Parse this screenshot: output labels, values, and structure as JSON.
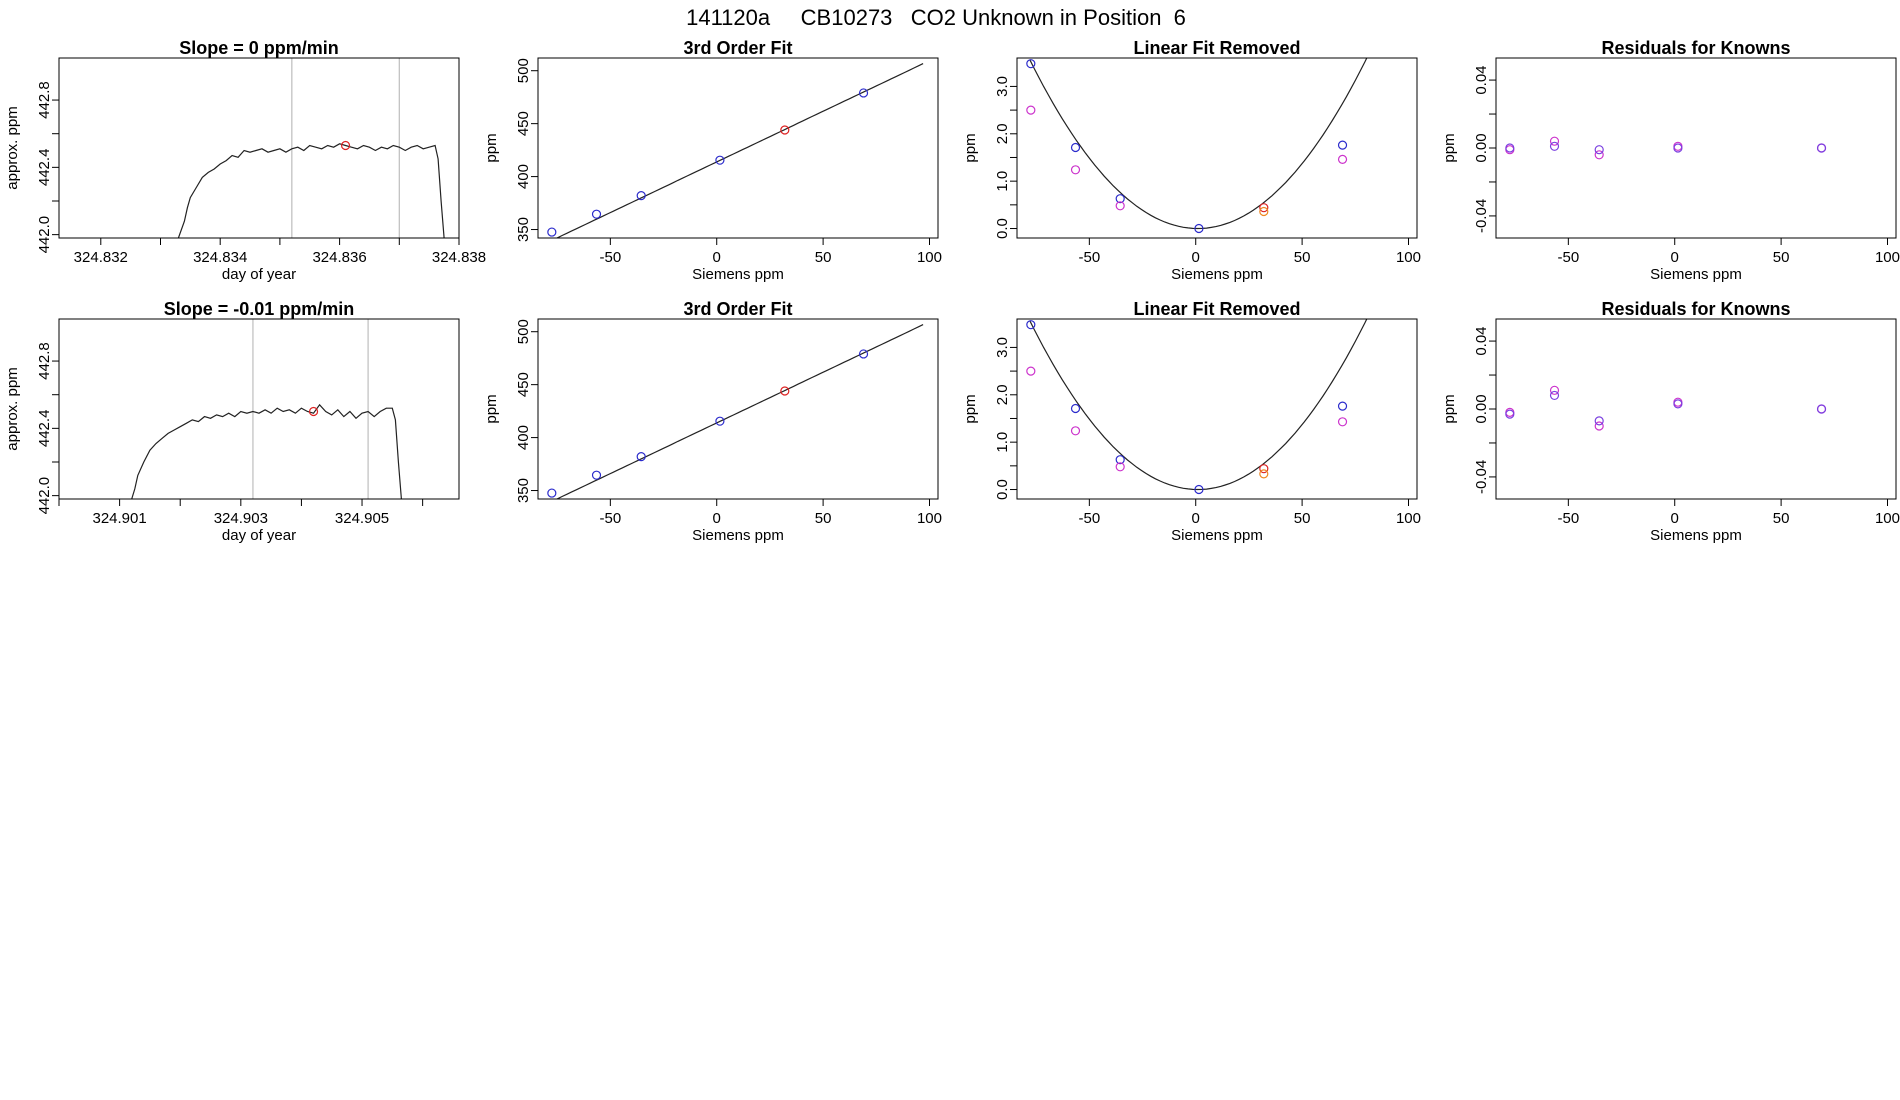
{
  "figure": {
    "title": "141120a     CB10273   CO2 Unknown in Position  6"
  },
  "colors": {
    "axes": "#000000",
    "trace": "#222222",
    "window_lines": "#bdbdbd",
    "blue": "#2b2bcc",
    "magenta": "#cc33cc",
    "red": "#dd2222",
    "orange": "#ee8822",
    "purple": "#7a3fe0"
  },
  "chart_data": [
    {
      "type": "line",
      "row": 1,
      "col": 1,
      "title": "Slope =  0  ppm/min",
      "xlabel": "day of year",
      "ylabel": "approx. ppm",
      "xlim": [
        324.8313,
        324.838
      ],
      "ylim": [
        441.98,
        443.05
      ],
      "xticks": [
        324.832,
        324.833,
        324.834,
        324.835,
        324.836,
        324.837,
        324.838
      ],
      "xtick_labels": [
        "324.832",
        "",
        "324.834",
        "",
        "324.836",
        "",
        "324.838"
      ],
      "yticks": [
        442.0,
        442.2,
        442.4,
        442.6,
        442.8
      ],
      "ytick_labels": [
        "442.0",
        "",
        "442.4",
        "",
        "442.8"
      ],
      "window": [
        324.8352,
        324.837
      ],
      "marker": {
        "x": 324.8361,
        "y": 442.53,
        "color": "red"
      },
      "trace": [
        [
          324.8333,
          441.98
        ],
        [
          324.8334,
          442.08
        ],
        [
          324.83345,
          442.16
        ],
        [
          324.8335,
          442.22
        ],
        [
          324.8336,
          442.28
        ],
        [
          324.8337,
          442.34
        ],
        [
          324.8338,
          442.37
        ],
        [
          324.8339,
          442.39
        ],
        [
          324.834,
          442.42
        ],
        [
          324.8341,
          442.44
        ],
        [
          324.8342,
          442.47
        ],
        [
          324.8343,
          442.46
        ],
        [
          324.8344,
          442.5
        ],
        [
          324.8345,
          442.49
        ],
        [
          324.8346,
          442.5
        ],
        [
          324.8347,
          442.51
        ],
        [
          324.8348,
          442.49
        ],
        [
          324.8349,
          442.5
        ],
        [
          324.835,
          442.51
        ],
        [
          324.8351,
          442.49
        ],
        [
          324.8352,
          442.51
        ],
        [
          324.8353,
          442.52
        ],
        [
          324.8354,
          442.5
        ],
        [
          324.8355,
          442.53
        ],
        [
          324.8356,
          442.52
        ],
        [
          324.8357,
          442.51
        ],
        [
          324.8358,
          442.53
        ],
        [
          324.8359,
          442.52
        ],
        [
          324.836,
          442.54
        ],
        [
          324.8361,
          442.53
        ],
        [
          324.8362,
          442.52
        ],
        [
          324.8363,
          442.51
        ],
        [
          324.8364,
          442.53
        ],
        [
          324.8365,
          442.52
        ],
        [
          324.8366,
          442.5
        ],
        [
          324.8367,
          442.52
        ],
        [
          324.8368,
          442.51
        ],
        [
          324.8369,
          442.53
        ],
        [
          324.837,
          442.52
        ],
        [
          324.8371,
          442.5
        ],
        [
          324.8372,
          442.52
        ],
        [
          324.8373,
          442.53
        ],
        [
          324.8374,
          442.51
        ],
        [
          324.8375,
          442.52
        ],
        [
          324.8376,
          442.53
        ],
        [
          324.83765,
          442.45
        ],
        [
          324.8377,
          442.2
        ],
        [
          324.83775,
          441.98
        ]
      ]
    },
    {
      "type": "scatter",
      "row": 1,
      "col": 2,
      "title": "3rd Order Fit",
      "xlabel": "Siemens ppm",
      "ylabel": "ppm",
      "xlim": [
        -84,
        104
      ],
      "ylim": [
        342,
        512
      ],
      "xticks": [
        -50,
        0,
        50,
        100
      ],
      "xtick_labels": [
        "-50",
        "0",
        "50",
        "100"
      ],
      "yticks": [
        350,
        400,
        450,
        500
      ],
      "ytick_labels": [
        "350",
        "400",
        "450",
        "500"
      ],
      "curve": {
        "kind": "linear_fit",
        "x_start": -77.0,
        "x_end": 97.0,
        "x_anchor": 1.0,
        "y_anchor": 414.8,
        "slope": 0.957,
        "quad": 0.0
      },
      "points": [
        {
          "x": -77.5,
          "y": 347.6,
          "color": "blue"
        },
        {
          "x": -56.5,
          "y": 364.5,
          "color": "blue"
        },
        {
          "x": -35.5,
          "y": 382.0,
          "color": "blue"
        },
        {
          "x": 1.5,
          "y": 415.5,
          "color": "blue"
        },
        {
          "x": 32.0,
          "y": 444.0,
          "color": "red"
        },
        {
          "x": 69.0,
          "y": 479.0,
          "color": "blue"
        }
      ]
    },
    {
      "type": "scatter",
      "row": 1,
      "col": 3,
      "title": "Linear Fit Removed",
      "xlabel": "Siemens ppm",
      "ylabel": "ppm",
      "xlim": [
        -84,
        104
      ],
      "ylim": [
        -0.2,
        3.6
      ],
      "xticks": [
        -50,
        0,
        50,
        100
      ],
      "xtick_labels": [
        "-50",
        "0",
        "50",
        "100"
      ],
      "yticks": [
        0.0,
        0.5,
        1.0,
        1.5,
        2.0,
        2.5,
        3.0
      ],
      "ytick_labels": [
        "0.0",
        "",
        "1.0",
        "",
        "2.0",
        "",
        "3.0"
      ],
      "curve": {
        "kind": "quadratic",
        "x_start": -78.0,
        "x_end": 97.0,
        "x_anchor": 1.0,
        "y_anchor": 0.0,
        "slope": 0.0,
        "quad": 0.000571
      },
      "points": [
        {
          "x": -77.5,
          "y": 3.48,
          "color": "blue"
        },
        {
          "x": -77.5,
          "y": 2.5,
          "color": "magenta"
        },
        {
          "x": -56.5,
          "y": 1.71,
          "color": "blue"
        },
        {
          "x": -56.5,
          "y": 1.24,
          "color": "magenta"
        },
        {
          "x": -35.5,
          "y": 0.63,
          "color": "blue"
        },
        {
          "x": -35.5,
          "y": 0.48,
          "color": "magenta"
        },
        {
          "x": 1.5,
          "y": 0.0,
          "color": "blue"
        },
        {
          "x": 32.0,
          "y": 0.44,
          "color": "red"
        },
        {
          "x": 32.0,
          "y": 0.36,
          "color": "orange"
        },
        {
          "x": 69.0,
          "y": 1.76,
          "color": "blue"
        },
        {
          "x": 69.0,
          "y": 1.46,
          "color": "magenta"
        }
      ]
    },
    {
      "type": "scatter",
      "row": 1,
      "col": 4,
      "title": "Residuals for Knowns",
      "xlabel": "Siemens ppm",
      "ylabel": "ppm",
      "xlim": [
        -84,
        104
      ],
      "ylim": [
        -0.053,
        0.053
      ],
      "xticks": [
        -50,
        0,
        50,
        100
      ],
      "xtick_labels": [
        "-50",
        "0",
        "50",
        "100"
      ],
      "yticks": [
        -0.04,
        -0.02,
        0.0,
        0.02,
        0.04
      ],
      "ytick_labels": [
        "-0.04",
        "",
        "0.00",
        "",
        "0.04"
      ],
      "points": [
        {
          "x": -77.5,
          "y": -0.001,
          "color": "magenta"
        },
        {
          "x": -77.5,
          "y": 0.0,
          "color": "purple"
        },
        {
          "x": -56.5,
          "y": 0.004,
          "color": "magenta"
        },
        {
          "x": -56.5,
          "y": 0.001,
          "color": "purple"
        },
        {
          "x": -35.5,
          "y": -0.004,
          "color": "magenta"
        },
        {
          "x": -35.5,
          "y": -0.001,
          "color": "purple"
        },
        {
          "x": 1.5,
          "y": 0.001,
          "color": "magenta"
        },
        {
          "x": 1.5,
          "y": 0.0,
          "color": "purple"
        },
        {
          "x": 69.0,
          "y": 0.0,
          "color": "magenta"
        },
        {
          "x": 69.0,
          "y": 0.0,
          "color": "purple"
        }
      ]
    },
    {
      "type": "line",
      "row": 2,
      "col": 1,
      "title": "Slope =  -0.01  ppm/min",
      "xlabel": "day of year",
      "ylabel": "approx. ppm",
      "xlim": [
        324.9,
        324.9066
      ],
      "ylim": [
        441.98,
        443.05
      ],
      "xticks": [
        324.9,
        324.901,
        324.902,
        324.903,
        324.904,
        324.905,
        324.906
      ],
      "xtick_labels": [
        "",
        "324.901",
        "",
        "324.903",
        "",
        "324.905",
        ""
      ],
      "yticks": [
        442.0,
        442.2,
        442.4,
        442.6,
        442.8
      ],
      "ytick_labels": [
        "442.0",
        "",
        "442.4",
        "",
        "442.8"
      ],
      "window": [
        324.9032,
        324.9051
      ],
      "marker": {
        "x": 324.9042,
        "y": 442.5,
        "color": "red"
      },
      "trace": [
        [
          324.9012,
          441.98
        ],
        [
          324.90125,
          442.04
        ],
        [
          324.9013,
          442.12
        ],
        [
          324.9014,
          442.2
        ],
        [
          324.9015,
          442.27
        ],
        [
          324.9016,
          442.31
        ],
        [
          324.9017,
          442.34
        ],
        [
          324.9018,
          442.37
        ],
        [
          324.9019,
          442.39
        ],
        [
          324.902,
          442.41
        ],
        [
          324.9021,
          442.43
        ],
        [
          324.9022,
          442.45
        ],
        [
          324.9023,
          442.44
        ],
        [
          324.9024,
          442.47
        ],
        [
          324.9025,
          442.46
        ],
        [
          324.9026,
          442.48
        ],
        [
          324.9027,
          442.47
        ],
        [
          324.9028,
          442.49
        ],
        [
          324.9029,
          442.47
        ],
        [
          324.903,
          442.5
        ],
        [
          324.9031,
          442.49
        ],
        [
          324.9032,
          442.5
        ],
        [
          324.9033,
          442.49
        ],
        [
          324.9034,
          442.51
        ],
        [
          324.9035,
          442.49
        ],
        [
          324.9036,
          442.52
        ],
        [
          324.9037,
          442.5
        ],
        [
          324.9038,
          442.51
        ],
        [
          324.9039,
          442.49
        ],
        [
          324.904,
          442.52
        ],
        [
          324.9041,
          442.5
        ],
        [
          324.9042,
          442.49
        ],
        [
          324.9043,
          442.54
        ],
        [
          324.9044,
          442.5
        ],
        [
          324.9045,
          442.48
        ],
        [
          324.9046,
          442.51
        ],
        [
          324.9047,
          442.47
        ],
        [
          324.9048,
          442.5
        ],
        [
          324.9049,
          442.46
        ],
        [
          324.905,
          442.49
        ],
        [
          324.9051,
          442.5
        ],
        [
          324.9052,
          442.47
        ],
        [
          324.9053,
          442.5
        ],
        [
          324.9054,
          442.52
        ],
        [
          324.9055,
          442.52
        ],
        [
          324.90555,
          442.45
        ],
        [
          324.9056,
          442.2
        ],
        [
          324.90565,
          441.98
        ]
      ]
    },
    {
      "type": "scatter",
      "row": 2,
      "col": 2,
      "title": "3rd Order Fit",
      "xlabel": "Siemens ppm",
      "ylabel": "ppm",
      "xlim": [
        -84,
        104
      ],
      "ylim": [
        342,
        512
      ],
      "xticks": [
        -50,
        0,
        50,
        100
      ],
      "xtick_labels": [
        "-50",
        "0",
        "50",
        "100"
      ],
      "yticks": [
        350,
        400,
        450,
        500
      ],
      "ytick_labels": [
        "350",
        "400",
        "450",
        "500"
      ],
      "curve": {
        "kind": "linear_fit",
        "x_start": -77.0,
        "x_end": 97.0,
        "x_anchor": 1.0,
        "y_anchor": 414.8,
        "slope": 0.957,
        "quad": 0.0
      },
      "points": [
        {
          "x": -77.5,
          "y": 347.6,
          "color": "blue"
        },
        {
          "x": -56.5,
          "y": 364.5,
          "color": "blue"
        },
        {
          "x": -35.5,
          "y": 382.0,
          "color": "blue"
        },
        {
          "x": 1.5,
          "y": 415.5,
          "color": "blue"
        },
        {
          "x": 32.0,
          "y": 444.0,
          "color": "red"
        },
        {
          "x": 69.0,
          "y": 479.0,
          "color": "blue"
        }
      ]
    },
    {
      "type": "scatter",
      "row": 2,
      "col": 3,
      "title": "Linear Fit Removed",
      "xlabel": "Siemens ppm",
      "ylabel": "ppm",
      "xlim": [
        -84,
        104
      ],
      "ylim": [
        -0.2,
        3.6
      ],
      "xticks": [
        -50,
        0,
        50,
        100
      ],
      "xtick_labels": [
        "-50",
        "0",
        "50",
        "100"
      ],
      "yticks": [
        0.0,
        0.5,
        1.0,
        1.5,
        2.0,
        2.5,
        3.0
      ],
      "ytick_labels": [
        "0.0",
        "",
        "1.0",
        "",
        "2.0",
        "",
        "3.0"
      ],
      "curve": {
        "kind": "quadratic",
        "x_start": -78.0,
        "x_end": 97.0,
        "x_anchor": 1.0,
        "y_anchor": 0.0,
        "slope": 0.0,
        "quad": 0.000571
      },
      "points": [
        {
          "x": -77.5,
          "y": 3.48,
          "color": "blue"
        },
        {
          "x": -77.5,
          "y": 2.5,
          "color": "magenta"
        },
        {
          "x": -56.5,
          "y": 1.71,
          "color": "blue"
        },
        {
          "x": -56.5,
          "y": 1.24,
          "color": "magenta"
        },
        {
          "x": -35.5,
          "y": 0.63,
          "color": "blue"
        },
        {
          "x": -35.5,
          "y": 0.48,
          "color": "magenta"
        },
        {
          "x": 1.5,
          "y": 0.0,
          "color": "blue"
        },
        {
          "x": 32.0,
          "y": 0.44,
          "color": "red"
        },
        {
          "x": 32.0,
          "y": 0.33,
          "color": "orange"
        },
        {
          "x": 69.0,
          "y": 1.76,
          "color": "blue"
        },
        {
          "x": 69.0,
          "y": 1.43,
          "color": "magenta"
        }
      ]
    },
    {
      "type": "scatter",
      "row": 2,
      "col": 4,
      "title": "Residuals for Knowns",
      "xlabel": "Siemens ppm",
      "ylabel": "ppm",
      "xlim": [
        -84,
        104
      ],
      "ylim": [
        -0.053,
        0.053
      ],
      "xticks": [
        -50,
        0,
        50,
        100
      ],
      "xtick_labels": [
        "-50",
        "0",
        "50",
        "100"
      ],
      "yticks": [
        -0.04,
        -0.02,
        0.0,
        0.02,
        0.04
      ],
      "ytick_labels": [
        "-0.04",
        "",
        "0.00",
        "",
        "0.04"
      ],
      "points": [
        {
          "x": -77.5,
          "y": -0.002,
          "color": "magenta"
        },
        {
          "x": -77.5,
          "y": -0.003,
          "color": "purple"
        },
        {
          "x": -56.5,
          "y": 0.011,
          "color": "magenta"
        },
        {
          "x": -56.5,
          "y": 0.008,
          "color": "purple"
        },
        {
          "x": -35.5,
          "y": -0.01,
          "color": "magenta"
        },
        {
          "x": -35.5,
          "y": -0.007,
          "color": "purple"
        },
        {
          "x": 1.5,
          "y": 0.004,
          "color": "magenta"
        },
        {
          "x": 1.5,
          "y": 0.003,
          "color": "purple"
        },
        {
          "x": 69.0,
          "y": 0.0,
          "color": "magenta"
        },
        {
          "x": 69.0,
          "y": 0.0,
          "color": "purple"
        }
      ]
    }
  ]
}
